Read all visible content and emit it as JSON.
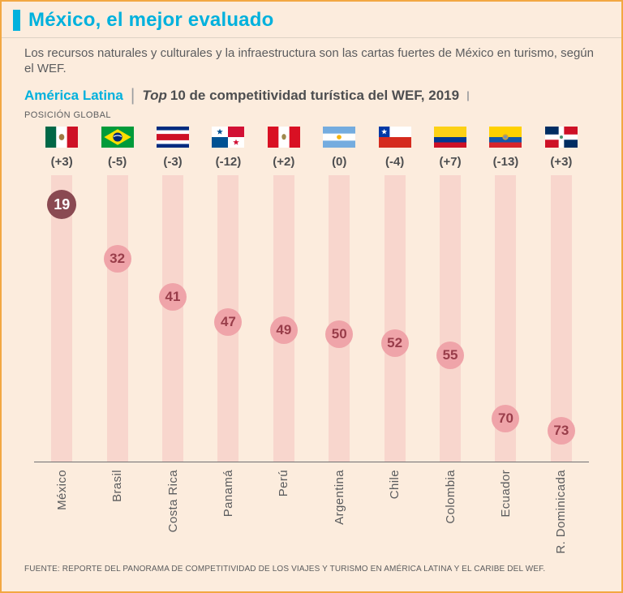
{
  "colors": {
    "background": "#fcecdd",
    "border_orange": "#f2a742",
    "accent_cyan": "#00b1dd",
    "text_dark": "#4d4e50",
    "text_gray": "#5b5c5e",
    "bar_pink": "#f8d6cd",
    "circle_pink": "#efa4a9",
    "circle_number": "#993d4a",
    "highlight_circle_bg": "#8a4a52",
    "highlight_circle_text": "#ffffff"
  },
  "header": {
    "title": "México, el mejor evaluado",
    "subtitle": "Los recursos naturales y culturales y la infraestructura son las cartas fuertes de México en turismo, según el WEF.",
    "section_label": "América Latina",
    "separator": "|",
    "chart_title_italic": "Top",
    "chart_title_rest": "10 de competitividad turística del WEF, 2019",
    "end_tick": "|",
    "axis_label": "POSICIÓN GLOBAL"
  },
  "footer": {
    "source": "FUENTE: REPORTE DEL PANORAMA DE COMPETITIVIDAD DE LOS VIAJES Y TURISMO EN AMÉRICA LATINA Y EL CARIBE DEL WEF."
  },
  "chart_data": {
    "type": "bar",
    "title": "Top 10 de competitividad turística del WEF, 2019",
    "subtitle": "América Latina",
    "ylabel": "POSICIÓN GLOBAL",
    "value_meaning": "posición global en el ranking WEF (menor número = mejor evaluado)",
    "rank_axis": {
      "min": 19,
      "max": 73
    },
    "countries": [
      {
        "name": "México",
        "flag": "mexico",
        "change": "(+3)",
        "rank": 19,
        "highlight": true
      },
      {
        "name": "Brasil",
        "flag": "brazil",
        "change": "(-5)",
        "rank": 32,
        "highlight": false
      },
      {
        "name": "Costa Rica",
        "flag": "costa-rica",
        "change": "(-3)",
        "rank": 41,
        "highlight": false
      },
      {
        "name": "Panamá",
        "flag": "panama",
        "change": "(-12)",
        "rank": 47,
        "highlight": false
      },
      {
        "name": "Perú",
        "flag": "peru",
        "change": "(+2)",
        "rank": 49,
        "highlight": false
      },
      {
        "name": "Argentina",
        "flag": "argentina",
        "change": "(0)",
        "rank": 50,
        "highlight": false
      },
      {
        "name": "Chile",
        "flag": "chile",
        "change": "(-4)",
        "rank": 52,
        "highlight": false
      },
      {
        "name": "Colombia",
        "flag": "colombia",
        "change": "(+7)",
        "rank": 55,
        "highlight": false
      },
      {
        "name": "Ecuador",
        "flag": "ecuador",
        "change": "(-13)",
        "rank": 70,
        "highlight": false
      },
      {
        "name": "R. Dominicada",
        "flag": "dominican-republic",
        "change": "(+3)",
        "rank": 73,
        "highlight": false
      }
    ]
  }
}
